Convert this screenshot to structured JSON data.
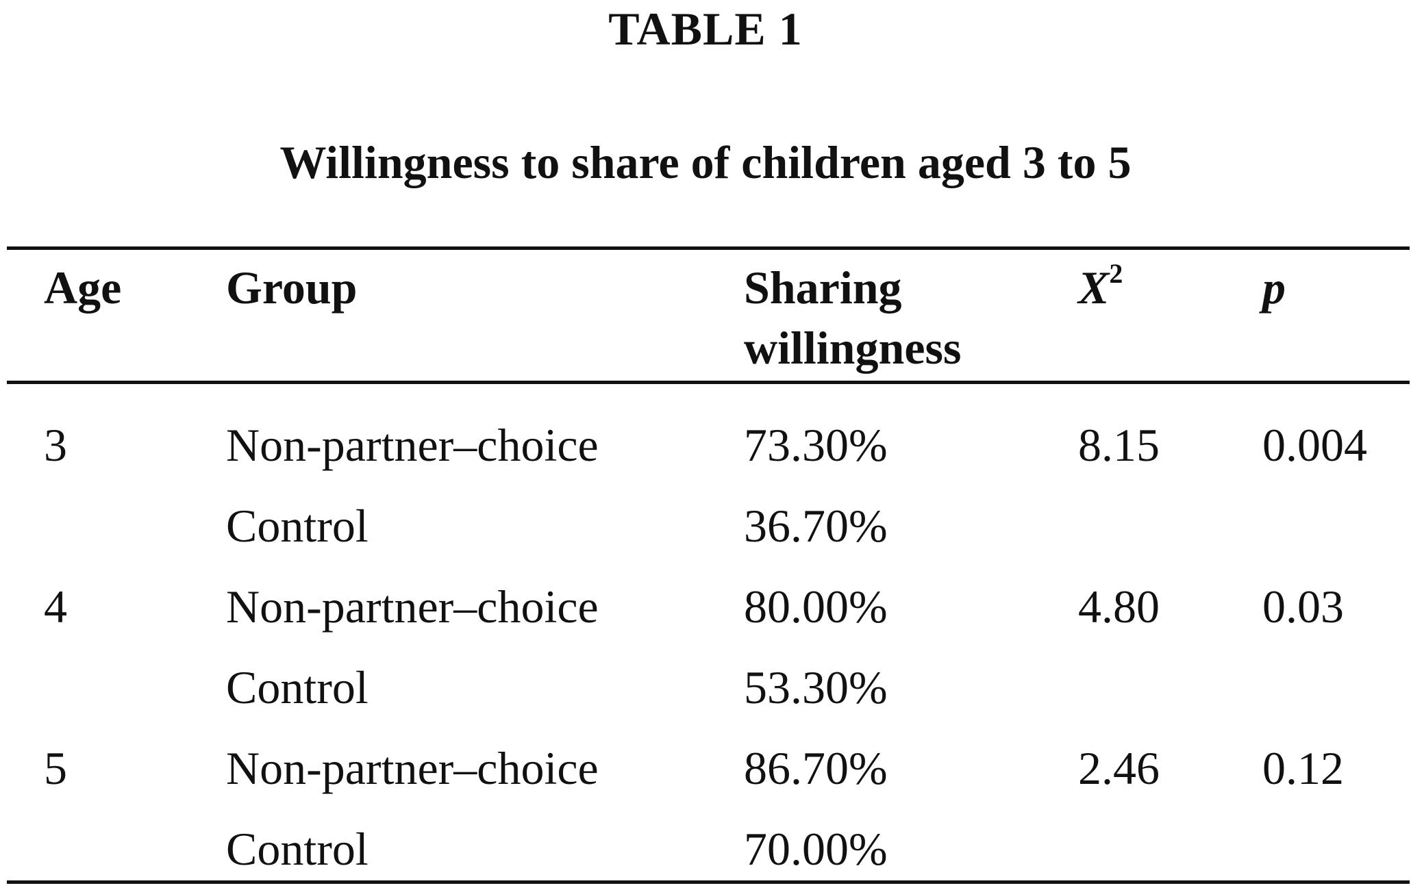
{
  "table": {
    "label": "TABLE 1",
    "caption": "Willingness to share of children aged 3 to 5",
    "headers": {
      "age": "Age",
      "group": "Group",
      "sharing_line1": "Sharing",
      "sharing_line2": "willingness",
      "chi_symbol": "X",
      "chi_superscript": "2",
      "p": "p"
    },
    "rows": [
      {
        "age": "3",
        "group": "Non-partner–choice",
        "sharing": "73.30%",
        "chi": "8.15",
        "p": "0.004"
      },
      {
        "age": "",
        "group": "Control",
        "sharing": "36.70%",
        "chi": "",
        "p": ""
      },
      {
        "age": "4",
        "group": "Non-partner–choice",
        "sharing": "80.00%",
        "chi": "4.80",
        "p": "0.03"
      },
      {
        "age": "",
        "group": "Control",
        "sharing": "53.30%",
        "chi": "",
        "p": ""
      },
      {
        "age": "5",
        "group": "Non-partner–choice",
        "sharing": "86.70%",
        "chi": "2.46",
        "p": "0.12"
      },
      {
        "age": "",
        "group": "Control",
        "sharing": "70.00%",
        "chi": "",
        "p": ""
      }
    ]
  }
}
